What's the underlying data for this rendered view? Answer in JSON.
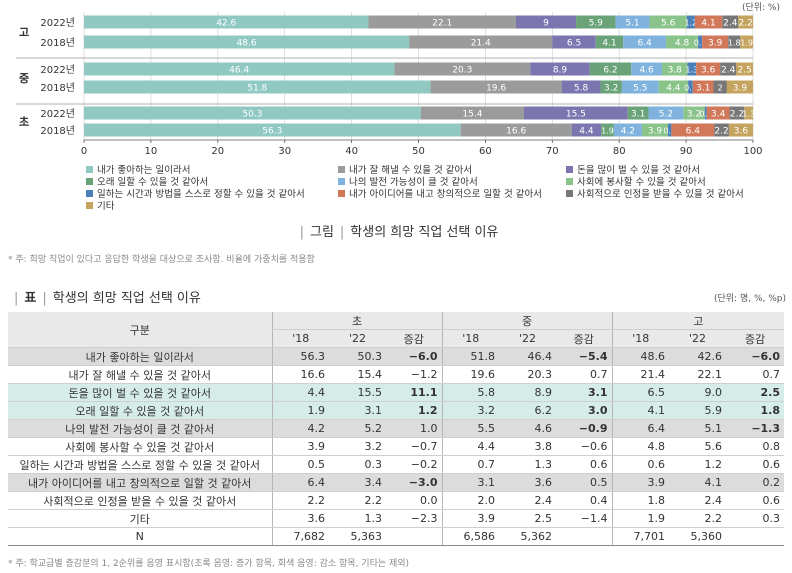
{
  "chart_data": {
    "type": "bar",
    "orientation": "horizontal",
    "stacked": true,
    "unit_label": "(단위: %)",
    "xlim": [
      0,
      100
    ],
    "xticks": [
      0,
      10,
      20,
      30,
      40,
      50,
      60,
      70,
      80,
      90,
      100
    ],
    "groups": [
      {
        "label": "고",
        "rows": [
          {
            "year": "2022년",
            "values": [
              42.6,
              22.1,
              9,
              5.9,
              5.1,
              5.6,
              1.2,
              4.1,
              2.4,
              2.2
            ],
            "labels": [
              "42.6",
              "22.1",
              "9",
              "5.9",
              "5.1",
              "5.6",
              "1.2",
              "4.1",
              "2.4",
              "2.2"
            ]
          },
          {
            "year": "2018년",
            "values": [
              48.6,
              21.4,
              6.5,
              4.1,
              6.4,
              4.8,
              0.6,
              3.9,
              1.8,
              1.9
            ],
            "labels": [
              "48.6",
              "21.4",
              "6.5",
              "4.1",
              "6.4",
              "4.8",
              "0.6",
              "3.9",
              "1.8",
              "1.9"
            ]
          }
        ]
      },
      {
        "label": "중",
        "rows": [
          {
            "year": "2022년",
            "values": [
              46.4,
              20.3,
              8.9,
              6.2,
              4.6,
              3.8,
              1.3,
              3.6,
              2.4,
              2.5
            ],
            "labels": [
              "46.4",
              "20.3",
              "8.9",
              "6.2",
              "4.6",
              "3.8",
              "1.3",
              "3.6",
              "2.4",
              "2.5"
            ]
          },
          {
            "year": "2018년",
            "values": [
              51.8,
              19.6,
              5.8,
              3.2,
              5.5,
              4.4,
              0.7,
              3.1,
              2,
              3.9
            ],
            "labels": [
              "51.8",
              "19.6",
              "5.8",
              "3.2",
              "5.5",
              "4.4",
              "0.7",
              "3.1",
              "2",
              "3.9"
            ]
          }
        ]
      },
      {
        "label": "초",
        "rows": [
          {
            "year": "2022년",
            "values": [
              50.3,
              15.4,
              15.5,
              3.1,
              5.2,
              3.2,
              0.3,
              3.4,
              2.2,
              1.3
            ],
            "labels": [
              "50.3",
              "15.4",
              "15.5",
              "3.1",
              "5.2",
              "3.2",
              "0.3",
              "3.4",
              "2.2",
              "1.3"
            ]
          },
          {
            "year": "2018년",
            "values": [
              56.3,
              16.6,
              4.4,
              1.9,
              4.2,
              3.9,
              0.5,
              6.4,
              2.2,
              3.6
            ],
            "labels": [
              "56.3",
              "16.6",
              "4.4",
              "1.9",
              "4.2",
              "3.9",
              "0.5",
              "6.4",
              "2.2",
              "3.6"
            ]
          }
        ]
      }
    ],
    "series": [
      {
        "name": "내가 좋아하는 일이라서",
        "color": "#8fc9c2"
      },
      {
        "name": "내가 잘 해낼 수 있을 것 같아서",
        "color": "#9b9b9b"
      },
      {
        "name": "돈을 많이 벌 수 있을 것 같아서",
        "color": "#7b76b0"
      },
      {
        "name": "오래 일할 수 있을 것 같아서",
        "color": "#6aa378"
      },
      {
        "name": "나의 발전 가능성이 클 것 같아서",
        "color": "#7fb3dd"
      },
      {
        "name": "사회에 봉사할 수 있을 것 같아서",
        "color": "#8bc48a"
      },
      {
        "name": "일하는 시간과 방법을 스스로 정할 수 있을 것 같아서",
        "color": "#4a7fb8"
      },
      {
        "name": "내가 아이디어를 내고 창의적으로 일할 것 같아서",
        "color": "#d2785a"
      },
      {
        "name": "사회적으로 인정을 받을 수 있을 것 같아서",
        "color": "#777777"
      },
      {
        "name": "기타",
        "color": "#c4a45e"
      }
    ],
    "legend_order": [
      0,
      1,
      2,
      3,
      4,
      5,
      6,
      7,
      8,
      9
    ]
  },
  "figure": {
    "prefix": "그림",
    "title": "학생의 희망 직업 선택 이유"
  },
  "note1": "* 주: 희망 직업이 있다고 응답한 학생을 대상으로 조사함. 비율에 가중치를 적용함",
  "table": {
    "prefix": "표",
    "title": "학생의 희망 직업 선택 이유",
    "unit": "(단위: 명, %, %p)",
    "corner": "구분",
    "groups": [
      "초",
      "중",
      "고"
    ],
    "subheaders": [
      "'18",
      "'22",
      "증감",
      "'18",
      "'22",
      "증감",
      "'18",
      "'22",
      "증감"
    ],
    "rows": [
      {
        "label": "내가 좋아하는 일이라서",
        "shade": "gray",
        "cells": [
          "56.3",
          "50.3",
          "−6.0",
          "51.8",
          "46.4",
          "−5.4",
          "48.6",
          "42.6",
          "−6.0"
        ],
        "bold": [
          2,
          5,
          8
        ]
      },
      {
        "label": "내가 잘 해낼 수 있을 것 같아서",
        "shade": "",
        "cells": [
          "16.6",
          "15.4",
          "−1.2",
          "19.6",
          "20.3",
          "0.7",
          "21.4",
          "22.1",
          "0.7"
        ],
        "bold": []
      },
      {
        "label": "돈을 많이 벌 수 있을 것 같아서",
        "shade": "green",
        "cells": [
          "4.4",
          "15.5",
          "11.1",
          "5.8",
          "8.9",
          "3.1",
          "6.5",
          "9.0",
          "2.5"
        ],
        "bold": [
          2,
          5,
          8
        ]
      },
      {
        "label": "오래 일할 수 있을 것 같아서",
        "shade": "green",
        "cells": [
          "1.9",
          "3.1",
          "1.2",
          "3.2",
          "6.2",
          "3.0",
          "4.1",
          "5.9",
          "1.8"
        ],
        "bold": [
          2,
          5,
          8
        ]
      },
      {
        "label": "나의 발전 가능성이 클 것 같아서",
        "shade": "gray",
        "cells": [
          "4.2",
          "5.2",
          "1.0",
          "5.5",
          "4.6",
          "−0.9",
          "6.4",
          "5.1",
          "−1.3"
        ],
        "bold": [
          5,
          8
        ]
      },
      {
        "label": "사회에 봉사할 수 있을 것 같아서",
        "shade": "",
        "cells": [
          "3.9",
          "3.2",
          "−0.7",
          "4.4",
          "3.8",
          "−0.6",
          "4.8",
          "5.6",
          "0.8"
        ],
        "bold": []
      },
      {
        "label": "일하는 시간과 방법을 스스로 정할 수 있을 것 같아서",
        "shade": "",
        "cells": [
          "0.5",
          "0.3",
          "−0.2",
          "0.7",
          "1.3",
          "0.6",
          "0.6",
          "1.2",
          "0.6"
        ],
        "bold": []
      },
      {
        "label": "내가 아이디어를 내고 창의적으로 일할 것 같아서",
        "shade": "gray",
        "cells": [
          "6.4",
          "3.4",
          "−3.0",
          "3.1",
          "3.6",
          "0.5",
          "3.9",
          "4.1",
          "0.2"
        ],
        "bold": [
          2
        ]
      },
      {
        "label": "사회적으로 인정을 받을 수 있을 것 같아서",
        "shade": "",
        "cells": [
          "2.2",
          "2.2",
          "0.0",
          "2.0",
          "2.4",
          "0.4",
          "1.8",
          "2.4",
          "0.6"
        ],
        "bold": []
      },
      {
        "label": "기타",
        "shade": "",
        "cells": [
          "3.6",
          "1.3",
          "−2.3",
          "3.9",
          "2.5",
          "−1.4",
          "1.9",
          "2.2",
          "0.3"
        ],
        "bold": []
      },
      {
        "label": "N",
        "shade": "",
        "cells": [
          "7,682",
          "5,363",
          "",
          "6,586",
          "5,362",
          "",
          "7,701",
          "5,360",
          ""
        ],
        "bold": []
      }
    ]
  },
  "note2": "* 주: 학교급별 증감분의 1, 2순위를 음영 표시함(초록 음영: 증가 항목, 회색 음영: 감소 항목, 기타는 제외)"
}
